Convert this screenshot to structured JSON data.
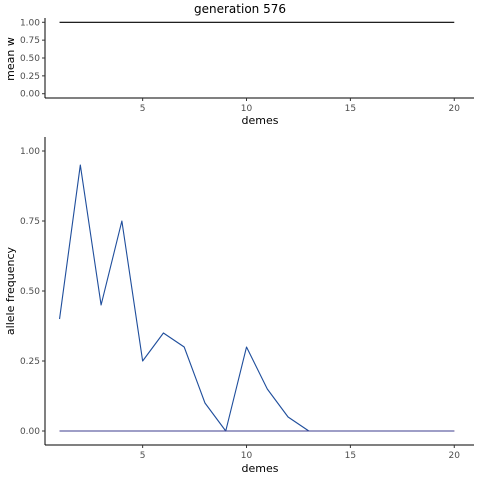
{
  "chart_data": [
    {
      "type": "line",
      "title": "generation 576",
      "xlabel": "demes",
      "ylabel": "mean w",
      "xlim": [
        0.3,
        20.95
      ],
      "ylim": [
        -0.06,
        1.06
      ],
      "xticks": [
        5,
        10,
        15,
        20
      ],
      "xtick_labels": [
        "5",
        "10",
        "15",
        "20"
      ],
      "yticks": [
        0,
        0.25,
        0.5,
        0.75,
        1
      ],
      "ytick_labels": [
        "0.00",
        "0.25",
        "0.50",
        "0.75",
        "1.00"
      ],
      "grid": false,
      "series": [
        {
          "color": "#000000",
          "x": [
            1,
            2,
            3,
            4,
            5,
            6,
            7,
            8,
            9,
            10,
            11,
            12,
            13,
            14,
            15,
            16,
            17,
            18,
            19,
            20
          ],
          "y": [
            1,
            1,
            1,
            1,
            1,
            1,
            1,
            1,
            1,
            1,
            1,
            1,
            1,
            1,
            1,
            1,
            1,
            1,
            1,
            1
          ]
        }
      ]
    },
    {
      "type": "line",
      "title": "",
      "xlabel": "demes",
      "ylabel": "allele frequency",
      "xlim": [
        0.3,
        20.95
      ],
      "ylim": [
        -0.05,
        1.05
      ],
      "xticks": [
        5,
        10,
        15,
        20
      ],
      "xtick_labels": [
        "5",
        "10",
        "15",
        "20"
      ],
      "yticks": [
        0,
        0.25,
        0.5,
        0.75,
        1
      ],
      "ytick_labels": [
        "0.00",
        "0.25",
        "0.50",
        "0.75",
        "1.00"
      ],
      "grid": false,
      "series": [
        {
          "color": "#1f4e9c",
          "x": [
            1,
            2,
            3,
            4,
            5,
            6,
            7,
            8,
            9,
            10,
            11,
            12,
            13,
            14,
            15,
            16,
            17,
            18,
            19,
            20
          ],
          "y": [
            0.4,
            0.95,
            0.45,
            0.75,
            0.25,
            0.35,
            0.3,
            0.1,
            0.0,
            0.3,
            0.15,
            0.05,
            0,
            0,
            0,
            0,
            0,
            0,
            0,
            0
          ]
        },
        {
          "color": "#b0356b",
          "x": [
            1,
            2,
            3,
            4,
            5,
            6,
            7,
            8,
            9,
            10,
            11,
            12,
            13,
            14,
            15,
            16,
            17,
            18,
            19,
            20
          ],
          "y": [
            0,
            0,
            0,
            0,
            0,
            0,
            0,
            0,
            0,
            0,
            0,
            0,
            0,
            0,
            0,
            0,
            0,
            0,
            0,
            0
          ]
        },
        {
          "color": "#3d3d8f",
          "x": [
            1,
            2,
            3,
            4,
            5,
            6,
            7,
            8,
            9,
            10,
            11,
            12,
            13,
            14,
            15,
            16,
            17,
            18,
            19,
            20
          ],
          "y": [
            0,
            0,
            0,
            0,
            0,
            0,
            0,
            0,
            0,
            0,
            0,
            0,
            0,
            0,
            0,
            0,
            0,
            0,
            0,
            0
          ]
        }
      ]
    }
  ]
}
